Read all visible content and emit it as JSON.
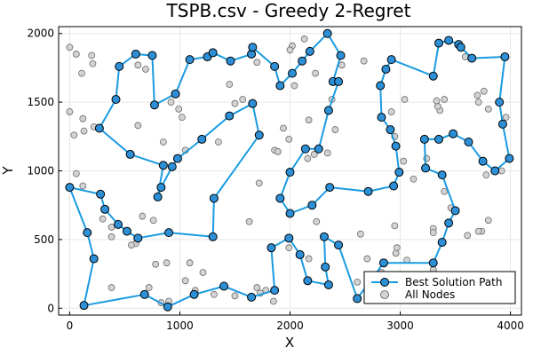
{
  "chart_data": {
    "type": "scatter",
    "title": "TSPB.csv - Greedy 2-Regret",
    "xlabel": "X",
    "ylabel": "Y",
    "xlim": [
      -100,
      4100
    ],
    "ylim": [
      -50,
      2050
    ],
    "xticks": [
      0,
      1000,
      2000,
      3000,
      4000
    ],
    "yticks": [
      0,
      500,
      1000,
      1500,
      2000
    ],
    "grid": true,
    "legend_position": "bottom-right",
    "series": [
      {
        "name": "Best Solution Path",
        "kind": "line+markers",
        "color": "#1a9be0",
        "marker_fill": "#2d8fd6",
        "closed": true,
        "points": [
          [
            0,
            880
          ],
          [
            280,
            830
          ],
          [
            320,
            720
          ],
          [
            440,
            610
          ],
          [
            520,
            560
          ],
          [
            620,
            510
          ],
          [
            900,
            550
          ],
          [
            1300,
            520
          ],
          [
            1310,
            800
          ],
          [
            1720,
            1260
          ],
          [
            1660,
            1490
          ],
          [
            1450,
            1400
          ],
          [
            1200,
            1230
          ],
          [
            980,
            1090
          ],
          [
            930,
            1030
          ],
          [
            830,
            880
          ],
          [
            800,
            810
          ],
          [
            850,
            1040
          ],
          [
            550,
            1120
          ],
          [
            270,
            1310
          ],
          [
            420,
            1520
          ],
          [
            450,
            1760
          ],
          [
            600,
            1850
          ],
          [
            750,
            1840
          ],
          [
            770,
            1480
          ],
          [
            960,
            1560
          ],
          [
            1090,
            1810
          ],
          [
            1250,
            1830
          ],
          [
            1300,
            1860
          ],
          [
            1460,
            1800
          ],
          [
            1650,
            1850
          ],
          [
            1660,
            1900
          ],
          [
            1860,
            1760
          ],
          [
            1910,
            1620
          ],
          [
            2020,
            1710
          ],
          [
            2110,
            1800
          ],
          [
            2180,
            1870
          ],
          [
            2340,
            2000
          ],
          [
            2460,
            1840
          ],
          [
            2390,
            1650
          ],
          [
            2440,
            1650
          ],
          [
            2350,
            1440
          ],
          [
            2260,
            1160
          ],
          [
            2140,
            1160
          ],
          [
            2000,
            990
          ],
          [
            1910,
            800
          ],
          [
            2000,
            690
          ],
          [
            2200,
            750
          ],
          [
            2360,
            880
          ],
          [
            2710,
            850
          ],
          [
            2940,
            890
          ],
          [
            2990,
            990
          ],
          [
            2960,
            1180
          ],
          [
            2910,
            1300
          ],
          [
            2830,
            1390
          ],
          [
            2820,
            1620
          ],
          [
            2870,
            1740
          ],
          [
            2920,
            1810
          ],
          [
            3300,
            1690
          ],
          [
            3350,
            1930
          ],
          [
            3440,
            1950
          ],
          [
            3530,
            1920
          ],
          [
            3550,
            1900
          ],
          [
            3650,
            1820
          ],
          [
            3950,
            1830
          ],
          [
            3900,
            1500
          ],
          [
            3930,
            1340
          ],
          [
            3990,
            1090
          ],
          [
            3860,
            1000
          ],
          [
            3750,
            1070
          ],
          [
            3620,
            1210
          ],
          [
            3480,
            1270
          ],
          [
            3350,
            1230
          ],
          [
            3220,
            1230
          ],
          [
            3230,
            1020
          ],
          [
            3380,
            970
          ],
          [
            3500,
            710
          ],
          [
            3440,
            620
          ],
          [
            3380,
            480
          ],
          [
            3300,
            330
          ],
          [
            2850,
            330
          ],
          [
            2610,
            70
          ],
          [
            2440,
            460
          ],
          [
            2310,
            520
          ],
          [
            2320,
            300
          ],
          [
            2350,
            170
          ],
          [
            2160,
            200
          ],
          [
            2090,
            390
          ],
          [
            1990,
            510
          ],
          [
            1830,
            440
          ],
          [
            1860,
            130
          ],
          [
            1650,
            80
          ],
          [
            1400,
            160
          ],
          [
            1130,
            100
          ],
          [
            890,
            10
          ],
          [
            680,
            100
          ],
          [
            130,
            20
          ],
          [
            220,
            360
          ],
          [
            160,
            550
          ]
        ]
      },
      {
        "name": "All Nodes",
        "kind": "markers",
        "color": "#d3d3d3",
        "points": [
          [
            0,
            880
          ],
          [
            280,
            830
          ],
          [
            320,
            720
          ],
          [
            440,
            610
          ],
          [
            520,
            560
          ],
          [
            620,
            510
          ],
          [
            900,
            550
          ],
          [
            1300,
            520
          ],
          [
            1310,
            800
          ],
          [
            1720,
            1260
          ],
          [
            1660,
            1490
          ],
          [
            1450,
            1400
          ],
          [
            1200,
            1230
          ],
          [
            980,
            1090
          ],
          [
            930,
            1030
          ],
          [
            830,
            880
          ],
          [
            800,
            810
          ],
          [
            850,
            1040
          ],
          [
            550,
            1120
          ],
          [
            270,
            1310
          ],
          [
            420,
            1520
          ],
          [
            450,
            1760
          ],
          [
            600,
            1850
          ],
          [
            750,
            1840
          ],
          [
            770,
            1480
          ],
          [
            960,
            1560
          ],
          [
            1090,
            1810
          ],
          [
            1250,
            1830
          ],
          [
            1300,
            1860
          ],
          [
            1460,
            1800
          ],
          [
            1650,
            1850
          ],
          [
            1660,
            1900
          ],
          [
            1860,
            1760
          ],
          [
            1910,
            1620
          ],
          [
            2020,
            1710
          ],
          [
            2110,
            1800
          ],
          [
            2180,
            1870
          ],
          [
            2340,
            2000
          ],
          [
            2460,
            1840
          ],
          [
            2390,
            1650
          ],
          [
            2440,
            1650
          ],
          [
            2350,
            1440
          ],
          [
            2260,
            1160
          ],
          [
            2140,
            1160
          ],
          [
            2000,
            990
          ],
          [
            1910,
            800
          ],
          [
            2000,
            690
          ],
          [
            2200,
            750
          ],
          [
            2360,
            880
          ],
          [
            2710,
            850
          ],
          [
            2940,
            890
          ],
          [
            2990,
            990
          ],
          [
            2960,
            1180
          ],
          [
            2910,
            1300
          ],
          [
            2830,
            1390
          ],
          [
            2820,
            1620
          ],
          [
            2870,
            1740
          ],
          [
            2920,
            1810
          ],
          [
            3300,
            1690
          ],
          [
            3350,
            1930
          ],
          [
            3440,
            1950
          ],
          [
            3530,
            1920
          ],
          [
            3550,
            1900
          ],
          [
            3650,
            1820
          ],
          [
            3950,
            1830
          ],
          [
            3900,
            1500
          ],
          [
            3930,
            1340
          ],
          [
            3990,
            1090
          ],
          [
            3860,
            1000
          ],
          [
            3750,
            1070
          ],
          [
            3620,
            1210
          ],
          [
            3480,
            1270
          ],
          [
            3350,
            1230
          ],
          [
            3220,
            1230
          ],
          [
            3230,
            1020
          ],
          [
            3380,
            970
          ],
          [
            3500,
            710
          ],
          [
            3440,
            620
          ],
          [
            3380,
            480
          ],
          [
            3300,
            330
          ],
          [
            2850,
            330
          ],
          [
            2610,
            70
          ],
          [
            2440,
            460
          ],
          [
            2310,
            520
          ],
          [
            2320,
            300
          ],
          [
            2350,
            170
          ],
          [
            2160,
            200
          ],
          [
            2090,
            390
          ],
          [
            1990,
            510
          ],
          [
            1830,
            440
          ],
          [
            1860,
            130
          ],
          [
            1650,
            80
          ],
          [
            1400,
            160
          ],
          [
            1130,
            100
          ],
          [
            890,
            10
          ],
          [
            680,
            100
          ],
          [
            130,
            20
          ],
          [
            220,
            360
          ],
          [
            160,
            550
          ],
          [
            0,
            1900
          ],
          [
            60,
            1850
          ],
          [
            200,
            1840
          ],
          [
            110,
            1710
          ],
          [
            210,
            1780
          ],
          [
            0,
            1430
          ],
          [
            40,
            1260
          ],
          [
            120,
            1380
          ],
          [
            130,
            1290
          ],
          [
            220,
            1320
          ],
          [
            60,
            980
          ],
          [
            120,
            890
          ],
          [
            300,
            650
          ],
          [
            380,
            590
          ],
          [
            380,
            520
          ],
          [
            600,
            470
          ],
          [
            560,
            460
          ],
          [
            660,
            670
          ],
          [
            760,
            640
          ],
          [
            780,
            320
          ],
          [
            620,
            1330
          ],
          [
            690,
            1740
          ],
          [
            620,
            1770
          ],
          [
            920,
            1500
          ],
          [
            990,
            1450
          ],
          [
            850,
            1210
          ],
          [
            1020,
            1390
          ],
          [
            1050,
            1150
          ],
          [
            1500,
            1490
          ],
          [
            1570,
            1520
          ],
          [
            1450,
            1630
          ],
          [
            1350,
            1210
          ],
          [
            1700,
            1790
          ],
          [
            1630,
            630
          ],
          [
            1720,
            910
          ],
          [
            1860,
            1150
          ],
          [
            1890,
            1140
          ],
          [
            1940,
            1310
          ],
          [
            1990,
            1230
          ],
          [
            2040,
            1620
          ],
          [
            2020,
            1910
          ],
          [
            2000,
            1880
          ],
          [
            2130,
            1960
          ],
          [
            2230,
            1710
          ],
          [
            2160,
            1090
          ],
          [
            2220,
            1120
          ],
          [
            2170,
            1370
          ],
          [
            2380,
            1520
          ],
          [
            2340,
            1130
          ],
          [
            2670,
            1800
          ],
          [
            2920,
            1430
          ],
          [
            2950,
            1250
          ],
          [
            3040,
            1520
          ],
          [
            3030,
            1070
          ],
          [
            2950,
            600
          ],
          [
            2970,
            440
          ],
          [
            3120,
            940
          ],
          [
            3240,
            1090
          ],
          [
            3300,
            580
          ],
          [
            3300,
            550
          ],
          [
            3360,
            1440
          ],
          [
            3340,
            1470
          ],
          [
            3330,
            1510
          ],
          [
            3400,
            1520
          ],
          [
            3590,
            1830
          ],
          [
            3700,
            1550
          ],
          [
            3710,
            1500
          ],
          [
            3760,
            1580
          ],
          [
            3800,
            1450
          ],
          [
            3960,
            1390
          ],
          [
            3920,
            1000
          ],
          [
            3780,
            970
          ],
          [
            3800,
            640
          ],
          [
            3740,
            560
          ],
          [
            3710,
            560
          ],
          [
            3610,
            530
          ],
          [
            3400,
            850
          ],
          [
            3460,
            730
          ],
          [
            3300,
            280
          ],
          [
            3060,
            350
          ],
          [
            2960,
            400
          ],
          [
            2830,
            260
          ],
          [
            2700,
            360
          ],
          [
            2640,
            540
          ],
          [
            2610,
            190
          ],
          [
            2470,
            1770
          ],
          [
            2410,
            1300
          ],
          [
            2240,
            630
          ],
          [
            2170,
            360
          ],
          [
            1990,
            440
          ],
          [
            1850,
            50
          ],
          [
            1780,
            130
          ],
          [
            1730,
            110
          ],
          [
            1700,
            150
          ],
          [
            1500,
            90
          ],
          [
            1310,
            100
          ],
          [
            1210,
            260
          ],
          [
            1140,
            130
          ],
          [
            1050,
            200
          ],
          [
            1090,
            330
          ],
          [
            880,
            330
          ],
          [
            900,
            50
          ],
          [
            830,
            40
          ],
          [
            720,
            150
          ],
          [
            380,
            150
          ]
        ]
      }
    ]
  }
}
